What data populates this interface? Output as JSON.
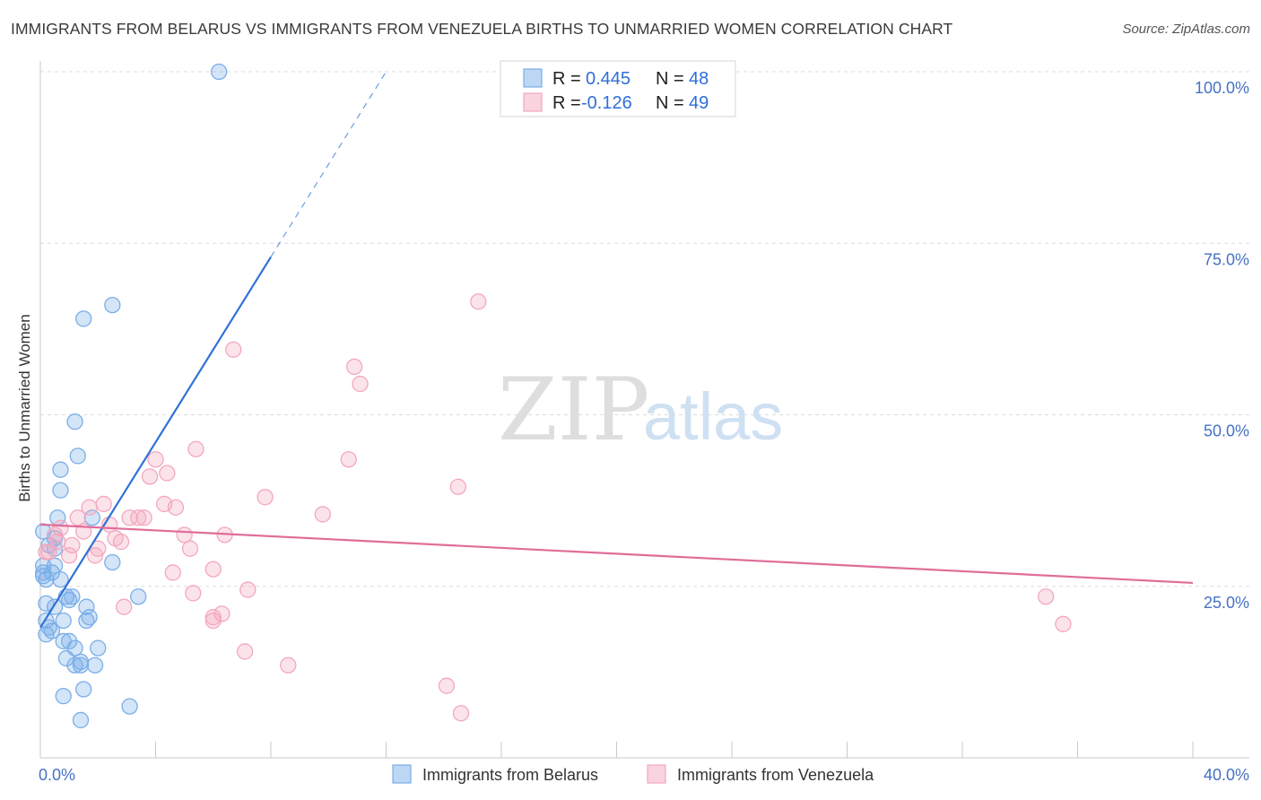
{
  "chart_data": {
    "type": "scatter",
    "title": "IMMIGRANTS FROM BELARUS VS IMMIGRANTS FROM VENEZUELA BIRTHS TO UNMARRIED WOMEN CORRELATION CHART",
    "source": "Source: ZipAtlas.com",
    "ylabel": "Births to Unmarried Women",
    "xlim": [
      0,
      40
    ],
    "ylim": [
      0,
      100
    ],
    "x_tick_labels": [
      {
        "value": 0,
        "label": "0.0%"
      },
      {
        "value": 40,
        "label": "40.0%"
      }
    ],
    "y_tick_labels": [
      {
        "value": 25,
        "label": "25.0%"
      },
      {
        "value": 50,
        "label": "50.0%"
      },
      {
        "value": 75,
        "label": "75.0%"
      },
      {
        "value": 100,
        "label": "100.0%"
      }
    ],
    "watermark": {
      "zip": "ZIP",
      "atlas": "atlas"
    },
    "legend": [
      {
        "series": "Immigrants from Belarus",
        "r_label": "R =",
        "r_value": "0.445",
        "n_label": "N =",
        "n_value": "48"
      },
      {
        "series": "Immigrants from Venezuela",
        "r_label": "R =",
        "r_value": "-0.126",
        "n_label": "N =",
        "n_value": "49"
      }
    ],
    "series": [
      {
        "name": "Immigrants from Belarus",
        "color": "#7aaee8",
        "line_color": "#2f72d6",
        "trend": {
          "x0": 0,
          "y0": 19,
          "x1": 12,
          "y1": 100,
          "solid_until_x": 8
        },
        "points": [
          [
            6.2,
            100
          ],
          [
            2.5,
            66
          ],
          [
            1.5,
            64
          ],
          [
            1.2,
            49
          ],
          [
            1.3,
            44
          ],
          [
            0.7,
            42
          ],
          [
            0.7,
            39
          ],
          [
            0.6,
            35
          ],
          [
            1.8,
            35
          ],
          [
            0.1,
            33
          ],
          [
            0.5,
            32
          ],
          [
            0.3,
            31
          ],
          [
            0.5,
            30.5
          ],
          [
            2.5,
            28.5
          ],
          [
            0.1,
            28
          ],
          [
            0.5,
            28
          ],
          [
            0.4,
            27
          ],
          [
            0.1,
            26.5
          ],
          [
            0.2,
            26
          ],
          [
            0.7,
            26
          ],
          [
            0.9,
            23.5
          ],
          [
            1.1,
            23.5
          ],
          [
            3.4,
            23.5
          ],
          [
            1.0,
            23
          ],
          [
            0.2,
            22.5
          ],
          [
            0.5,
            22
          ],
          [
            1.6,
            22
          ],
          [
            0.8,
            20
          ],
          [
            1.6,
            20
          ],
          [
            1.7,
            20.5
          ],
          [
            0.3,
            19
          ],
          [
            0.4,
            18.5
          ],
          [
            0.2,
            18
          ],
          [
            0.8,
            17
          ],
          [
            1.0,
            17
          ],
          [
            1.2,
            16
          ],
          [
            2.0,
            16
          ],
          [
            0.9,
            14.5
          ],
          [
            1.4,
            14
          ],
          [
            1.2,
            13.5
          ],
          [
            1.4,
            13.5
          ],
          [
            1.9,
            13.5
          ],
          [
            1.5,
            10
          ],
          [
            0.8,
            9
          ],
          [
            3.1,
            7.5
          ],
          [
            1.4,
            5.5
          ],
          [
            0.2,
            20
          ],
          [
            0.1,
            27
          ]
        ]
      },
      {
        "name": "Immigrants from Venezuela",
        "color": "#f4a7be",
        "line_color": "#e06d99",
        "trend": {
          "x0": 0,
          "y0": 34,
          "x1": 40,
          "y1": 25.5
        },
        "points": [
          [
            15.2,
            66.5
          ],
          [
            6.7,
            59.5
          ],
          [
            10.9,
            57
          ],
          [
            11.1,
            54.5
          ],
          [
            5.4,
            45
          ],
          [
            10.7,
            43.5
          ],
          [
            4.0,
            43.5
          ],
          [
            4.4,
            41.5
          ],
          [
            3.8,
            41
          ],
          [
            14.5,
            39.5
          ],
          [
            7.8,
            38
          ],
          [
            2.2,
            37
          ],
          [
            1.7,
            36.5
          ],
          [
            4.3,
            37
          ],
          [
            4.7,
            36.5
          ],
          [
            9.8,
            35.5
          ],
          [
            3.1,
            35
          ],
          [
            3.6,
            35
          ],
          [
            3.4,
            35
          ],
          [
            1.3,
            35
          ],
          [
            2.4,
            34
          ],
          [
            0.7,
            33.5
          ],
          [
            1.5,
            33
          ],
          [
            0.5,
            32.5
          ],
          [
            5.0,
            32.5
          ],
          [
            6.4,
            32.5
          ],
          [
            0.6,
            31.5
          ],
          [
            2.6,
            32
          ],
          [
            2.8,
            31.5
          ],
          [
            1.1,
            31
          ],
          [
            2.0,
            30.5
          ],
          [
            5.2,
            30.5
          ],
          [
            0.3,
            30
          ],
          [
            1.9,
            29.5
          ],
          [
            1.0,
            29.5
          ],
          [
            0.2,
            30
          ],
          [
            6.0,
            27.5
          ],
          [
            4.6,
            27
          ],
          [
            7.2,
            24.5
          ],
          [
            5.3,
            24
          ],
          [
            34.9,
            23.5
          ],
          [
            2.9,
            22
          ],
          [
            6.3,
            21
          ],
          [
            6.0,
            20
          ],
          [
            6.0,
            20.5
          ],
          [
            35.5,
            19.5
          ],
          [
            7.1,
            15.5
          ],
          [
            8.6,
            13.5
          ],
          [
            14.1,
            10.5
          ]
        ],
        "extra_points": [
          [
            14.6,
            6.5
          ]
        ]
      }
    ]
  }
}
